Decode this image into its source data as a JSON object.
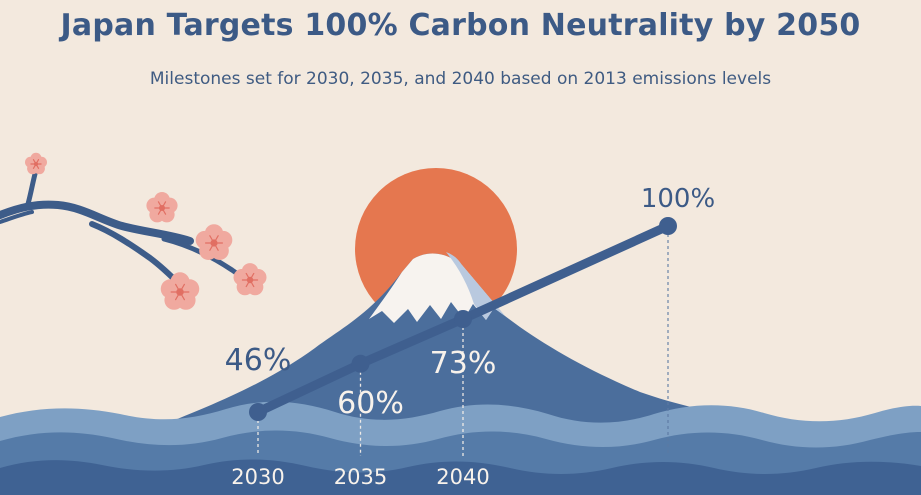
{
  "title": "Japan Targets 100% Carbon Neutrality by 2050",
  "subtitle": "Milestones set for 2030, 2035, and 2040 based on 2013 emissions levels",
  "colors": {
    "background": "#f3e9de",
    "title": "#3c5a86",
    "line": "#3f5f8f",
    "sun": "#e5774f",
    "mountain": "#4b6e9c",
    "snow": "#f7f3ef",
    "wave_dark": "#3f6293",
    "wave_mid": "#557ba8",
    "wave_light": "#7ea0c4",
    "blossom": "#f0a99f",
    "branch": "#3d5c89"
  },
  "chart_data": {
    "type": "line",
    "title": "Japan Targets 100% Carbon Neutrality by 2050",
    "subtitle": "Milestones set for 2030, 2035, and 2040 based on 2013 emissions levels",
    "x": [
      "2030",
      "2035",
      "2040",
      "2050"
    ],
    "x_tick_labels": [
      "2030",
      "2035",
      "2040",
      ""
    ],
    "series": [
      {
        "values": [
          46,
          60,
          73,
          100
        ],
        "labels": [
          "46%",
          "60%",
          "73%",
          "100%"
        ]
      }
    ],
    "xlabel": "",
    "ylabel": "",
    "grid": false,
    "legend": "none"
  }
}
